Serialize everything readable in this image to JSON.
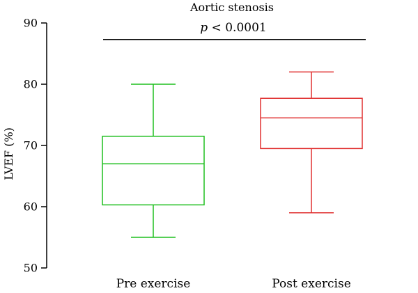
{
  "chart_data": {
    "type": "box",
    "title": "Aortic stenosis",
    "ylabel": "LVEF (%)",
    "xlabel": "",
    "ylim": [
      50,
      90
    ],
    "yticks": [
      50,
      60,
      70,
      80,
      90
    ],
    "grid": false,
    "categories": [
      "Pre exercise",
      "Post exercise"
    ],
    "boxes": [
      {
        "category": "Pre exercise",
        "min": 55,
        "q1": 60.3,
        "median": 67,
        "q3": 71.5,
        "max": 80,
        "color": "#1fbf1f"
      },
      {
        "category": "Post exercise",
        "min": 59,
        "q1": 69.5,
        "median": 74.5,
        "q3": 77.7,
        "max": 82,
        "color": "#e03030"
      }
    ],
    "annotation": {
      "p_symbol": "p",
      "text": " < 0.0001",
      "bracket_y": 87.3
    }
  }
}
